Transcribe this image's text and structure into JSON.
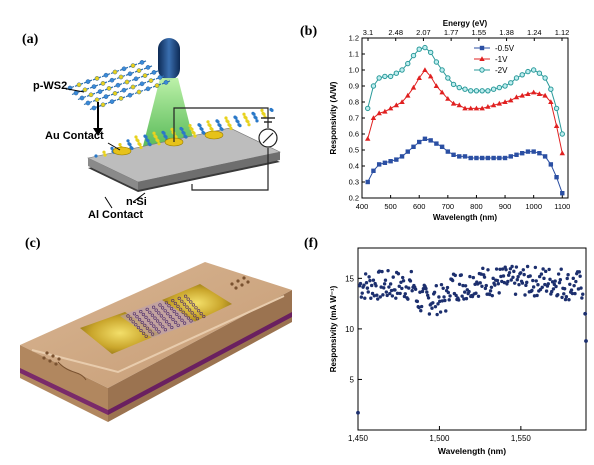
{
  "panels": {
    "a": "(a)",
    "b": "(b)",
    "c": "(c)",
    "f": "(f)"
  },
  "panel_a": {
    "labels": {
      "pws2": "p-WS2",
      "au": "Au Contact",
      "nsi": "n-Si",
      "al": "Al Contact"
    }
  },
  "chart_data": [
    {
      "type": "line",
      "panel": "b",
      "xlabel": "Wavelength (nm)",
      "ylabel": "Responsivity (A/W)",
      "top_axis_label": "Energy (eV)",
      "top_ticks": [
        "3.1",
        "2.48",
        "2.07",
        "1.77",
        "1.55",
        "1.38",
        "1.24",
        "1.12"
      ],
      "xlim": [
        400,
        1120
      ],
      "ylim": [
        0.2,
        1.2
      ],
      "x_ticks": [
        400,
        500,
        600,
        700,
        800,
        900,
        1000,
        1100
      ],
      "y_ticks": [
        0.2,
        0.3,
        0.4,
        0.5,
        0.6,
        0.7,
        0.8,
        0.9,
        1.0,
        1.1,
        1.2
      ],
      "legend_position": "top-right",
      "x": [
        420,
        440,
        460,
        480,
        500,
        520,
        540,
        560,
        580,
        600,
        620,
        640,
        660,
        680,
        700,
        720,
        740,
        760,
        780,
        800,
        820,
        840,
        860,
        880,
        900,
        920,
        940,
        960,
        980,
        1000,
        1020,
        1040,
        1060,
        1080,
        1100
      ],
      "series": [
        {
          "name": "-0.5V",
          "color": "#2b4fa3",
          "marker": "square",
          "values": [
            0.3,
            0.37,
            0.41,
            0.42,
            0.43,
            0.44,
            0.46,
            0.49,
            0.52,
            0.55,
            0.57,
            0.56,
            0.54,
            0.52,
            0.49,
            0.47,
            0.46,
            0.46,
            0.45,
            0.45,
            0.45,
            0.45,
            0.45,
            0.45,
            0.45,
            0.46,
            0.47,
            0.48,
            0.49,
            0.49,
            0.48,
            0.46,
            0.41,
            0.33,
            0.23
          ]
        },
        {
          "name": "-1V",
          "color": "#e02020",
          "marker": "triangle",
          "values": [
            0.57,
            0.7,
            0.73,
            0.74,
            0.76,
            0.78,
            0.8,
            0.84,
            0.89,
            0.95,
            1.0,
            0.96,
            0.9,
            0.86,
            0.82,
            0.79,
            0.78,
            0.76,
            0.76,
            0.76,
            0.76,
            0.77,
            0.78,
            0.79,
            0.8,
            0.81,
            0.83,
            0.84,
            0.85,
            0.86,
            0.85,
            0.84,
            0.8,
            0.65,
            0.48
          ]
        },
        {
          "name": "-2V",
          "color": "#2a9a9a",
          "marker": "circle",
          "values": [
            0.76,
            0.9,
            0.95,
            0.96,
            0.96,
            0.98,
            1.0,
            1.04,
            1.09,
            1.13,
            1.14,
            1.11,
            1.05,
            1.0,
            0.95,
            0.91,
            0.89,
            0.88,
            0.87,
            0.87,
            0.87,
            0.87,
            0.88,
            0.89,
            0.9,
            0.92,
            0.95,
            0.97,
            0.99,
            1.0,
            0.98,
            0.95,
            0.88,
            0.76,
            0.6
          ]
        }
      ]
    },
    {
      "type": "scatter",
      "panel": "f",
      "xlabel": "Wavelength (nm)",
      "ylabel": "Responsivity (mA W⁻¹)",
      "xlim": [
        1450,
        1590
      ],
      "ylim": [
        0,
        18
      ],
      "x_ticks": [
        1450,
        1500,
        1550
      ],
      "x_tick_labels": [
        "1,450",
        "1,500",
        "1,550"
      ],
      "y_ticks": [
        0,
        5,
        10,
        15
      ],
      "color": "#1c2f6e",
      "points_sparse": [
        [
          1450,
          1.7
        ],
        [
          1590,
          8.8
        ],
        [
          1589.5,
          11.5
        ]
      ]
    }
  ]
}
